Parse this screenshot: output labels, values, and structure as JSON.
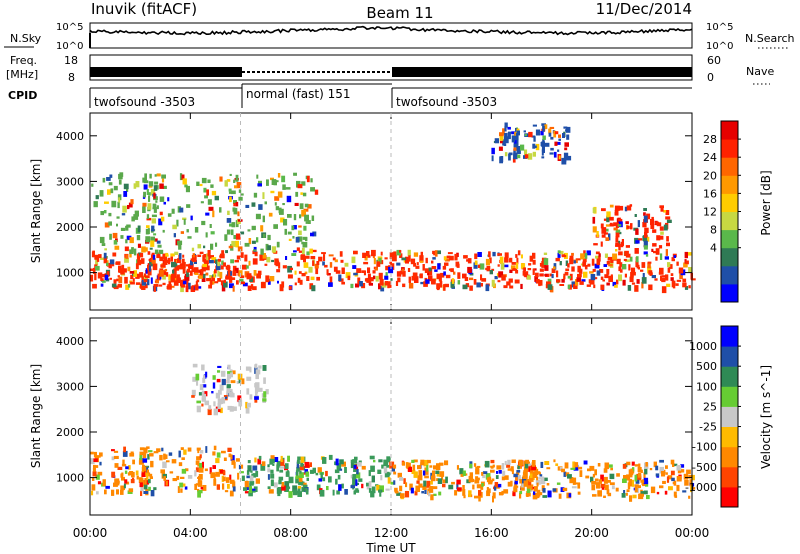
{
  "header": {
    "station": "Inuvik (fitACF)",
    "beam": "Beam 11",
    "date": "11/Dec/2014"
  },
  "noise_panel": {
    "left_label": "N.Sky",
    "right_label": "N.Search",
    "ticks": [
      "10^5",
      "10^0"
    ]
  },
  "freq_panel": {
    "left_label_line1": "Freq.",
    "left_label_line2": "[MHz]",
    "left_ticks": [
      "18",
      "8"
    ],
    "right_ticks": [
      "60",
      "0"
    ],
    "right_label": "Nave"
  },
  "cpid": {
    "label": "CPID",
    "segments": [
      {
        "name": "twofsound -3503",
        "start": 0,
        "end": 6
      },
      {
        "name": "normal (fast) 151",
        "start": 6,
        "end": 12
      },
      {
        "name": "twofsound -3503",
        "start": 12,
        "end": 24
      }
    ]
  },
  "chart_data": [
    {
      "type": "heatmap",
      "title": "",
      "ylabel": "Slant Range [km]",
      "xlabel": "Time UT",
      "x_ticks": [
        "00:00",
        "04:00",
        "08:00",
        "12:00",
        "16:00",
        "20:00",
        "00:00"
      ],
      "xlim": [
        0,
        24
      ],
      "ylim": [
        180,
        4500
      ],
      "y_ticks": [
        1000,
        2000,
        3000,
        4000
      ],
      "colorbar": {
        "label": "Power [dB]",
        "ticks": [
          "28",
          "24",
          "20",
          "16",
          "12",
          "8",
          "4"
        ],
        "colors": [
          "#0000ff",
          "#1f4fa8",
          "#2f7a55",
          "#5ab84b",
          "#c7d842",
          "#ffcc00",
          "#ff9900",
          "#ff6600",
          "#ff2200",
          "#e60000"
        ]
      },
      "bands": [
        {
          "range_km": [
            700,
            1500
          ],
          "time_h": [
            0,
            24
          ],
          "value": "4-28 dB",
          "color": "#ff2a00"
        },
        {
          "range_km": [
            1500,
            3200
          ],
          "time_h": [
            0,
            9
          ],
          "value": "8-16 dB",
          "color": "#5aa84b"
        },
        {
          "range_km": [
            3500,
            4300
          ],
          "time_h": [
            16,
            19
          ],
          "value": "8 dB",
          "color": "#1f4fa8"
        },
        {
          "range_km": [
            1500,
            2500
          ],
          "time_h": [
            20,
            23
          ],
          "value": "24-28 dB",
          "color": "#ff2200"
        }
      ]
    },
    {
      "type": "heatmap",
      "title": "",
      "ylabel": "Slant Range [km]",
      "xlabel": "Time UT",
      "x_ticks": [
        "00:00",
        "04:00",
        "08:00",
        "12:00",
        "16:00",
        "20:00",
        "00:00"
      ],
      "xlim": [
        0,
        24
      ],
      "ylim": [
        180,
        4500
      ],
      "y_ticks": [
        1000,
        2000,
        3000,
        4000
      ],
      "colorbar": {
        "label": "Velocity [m s^-1]",
        "ticks": [
          "1000",
          "500",
          "100",
          "25",
          "-25",
          "-100",
          "-500",
          "-1000"
        ],
        "colors": [
          "#ff0000",
          "#ff4400",
          "#ff8800",
          "#ffbb00",
          "#c8c8c8",
          "#66cc33",
          "#2f8a55",
          "#1f4fa8",
          "#0000ff"
        ]
      },
      "bands": [
        {
          "range_km": [
            700,
            1700
          ],
          "time_h": [
            0,
            6
          ],
          "value": "-100 to -500 m/s",
          "color": "#ff8800"
        },
        {
          "range_km": [
            700,
            1500
          ],
          "time_h": [
            6,
            12
          ],
          "value": "-25 to 100 m/s",
          "color": "#3a9a5a"
        },
        {
          "range_km": [
            600,
            1400
          ],
          "time_h": [
            12,
            24
          ],
          "value": "-100 to -500 m/s",
          "color": "#ff8800"
        },
        {
          "range_km": [
            2500,
            3500
          ],
          "time_h": [
            4,
            7
          ],
          "value": "-25 to 25 m/s",
          "color": "#c8c8c8"
        }
      ]
    }
  ]
}
